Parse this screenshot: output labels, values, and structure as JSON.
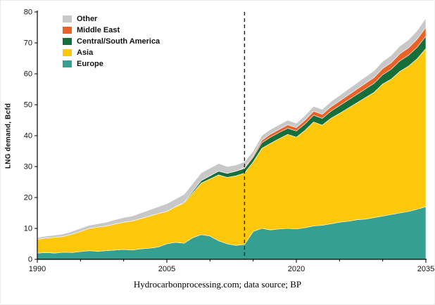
{
  "caption": "Hydrocarbonprocessing.com; data source; BP",
  "chart_data": {
    "type": "area",
    "subtype": "stacked-area",
    "title": "",
    "xlabel": "",
    "ylabel": "LNG demand, Bcfd",
    "ylim": [
      0,
      80
    ],
    "y_ticks": [
      0,
      10,
      20,
      30,
      40,
      50,
      60,
      70,
      80
    ],
    "x_range": [
      1990,
      2035
    ],
    "x_tick_labels": [
      1990,
      2005,
      2020,
      2035
    ],
    "x_minor_tick_step": 5,
    "forecast_divider_year": 2014,
    "divider_style": "dashed-vertical-line",
    "grid": false,
    "legend_position": "top-left-inside",
    "stack_order_bottom_to_top": [
      "Europe",
      "Asia",
      "Central/South America",
      "Middle East",
      "Other"
    ],
    "series": [
      {
        "name": "Europe",
        "color": "#35a08f",
        "values": [
          2,
          2.2,
          2,
          2.3,
          2.2,
          2.5,
          2.8,
          2.6,
          2.8,
          3,
          3.2,
          3,
          3.4,
          3.6,
          4,
          5,
          5.5,
          5.2,
          7,
          8,
          7.5,
          6,
          5,
          4.5,
          4.8,
          9,
          10,
          9.5,
          9.8,
          10,
          9.8,
          10.2,
          10.8,
          11,
          11.5,
          12,
          12.3,
          12.8,
          13,
          13.5,
          14,
          14.5,
          15,
          15.5,
          16.2,
          17
        ]
      },
      {
        "name": "Asia",
        "color": "#fdc70b",
        "values": [
          4.5,
          4.7,
          5.1,
          5.1,
          5.9,
          6.5,
          7.2,
          7.8,
          8,
          8.4,
          8.8,
          9.4,
          9.8,
          10.4,
          10.8,
          10.5,
          11.5,
          13,
          14.5,
          16.7,
          18.5,
          21.3,
          21.5,
          22.5,
          23.1,
          22.5,
          25.9,
          28,
          29.2,
          30.4,
          29.7,
          31.5,
          33.6,
          32.4,
          34.1,
          35.2,
          36.6,
          37.8,
          39.3,
          40.5,
          42.7,
          43.8,
          45.8,
          47,
          48.7,
          51.2
        ]
      },
      {
        "name": "Central/South America",
        "color": "#166e3a",
        "values": [
          0,
          0,
          0,
          0,
          0,
          0,
          0,
          0,
          0,
          0,
          0,
          0,
          0,
          0,
          0,
          0,
          0,
          0.3,
          0.5,
          0.8,
          1,
          1.2,
          1.3,
          1.5,
          1.5,
          1.5,
          1.8,
          2,
          2,
          2,
          2,
          2.1,
          2.2,
          2.2,
          2.3,
          2.5,
          2.6,
          2.7,
          2.8,
          2.9,
          3,
          3.2,
          3.4,
          3.5,
          3.7,
          4
        ]
      },
      {
        "name": "Middle East",
        "color": "#ea6227",
        "values": [
          0,
          0,
          0,
          0,
          0,
          0,
          0,
          0,
          0,
          0,
          0,
          0,
          0,
          0,
          0,
          0,
          0,
          0,
          0,
          0,
          0,
          0,
          0,
          0,
          0.3,
          0.5,
          0.8,
          1,
          1,
          1.1,
          1.1,
          1.2,
          1.3,
          1.3,
          1.4,
          1.5,
          1.6,
          1.7,
          1.8,
          1.9,
          2,
          2.1,
          2.3,
          2.4,
          2.6,
          2.8
        ]
      },
      {
        "name": "Other",
        "color": "#c8c8c8",
        "values": [
          0.5,
          0.6,
          0.7,
          0.8,
          0.9,
          1,
          1,
          1.1,
          1.2,
          1.4,
          1.5,
          1.6,
          1.8,
          2,
          2.2,
          2.5,
          2.5,
          2.5,
          2.5,
          2.5,
          2.5,
          2.5,
          2.2,
          2,
          1.8,
          1.5,
          1.5,
          1.5,
          1.5,
          1.5,
          1.4,
          1.5,
          1.6,
          1.6,
          1.7,
          1.8,
          1.9,
          2,
          2.1,
          2.2,
          2.3,
          2.4,
          2.5,
          2.6,
          2.8,
          3
        ]
      }
    ],
    "legend": [
      {
        "label": "Other",
        "color": "#c8c8c8"
      },
      {
        "label": "Middle East",
        "color": "#ea6227"
      },
      {
        "label": "Central/South America",
        "color": "#166e3a"
      },
      {
        "label": "Asia",
        "color": "#fdc70b"
      },
      {
        "label": "Europe",
        "color": "#35a08f"
      }
    ]
  }
}
